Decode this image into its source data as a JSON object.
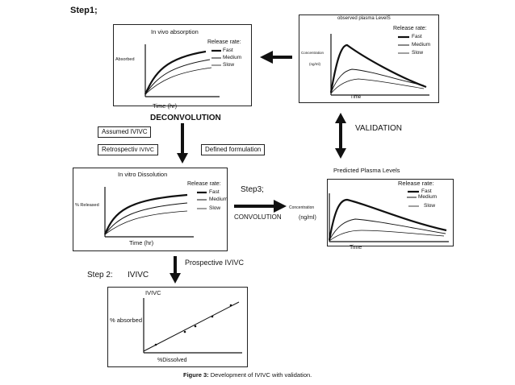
{
  "step1": "Step1;",
  "panel_invivo": {
    "title": "In vivo absorption",
    "ylabel": "Absorbed",
    "xlabel": "Time (hr)",
    "legend_title": "Release rate:",
    "legend": [
      "Fast",
      "Medium",
      "Slow"
    ]
  },
  "panel_observed": {
    "title": "observed plasma LevelS",
    "ylabel_line1": "Concentration",
    "ylabel_line2": "(ng/ml)",
    "xlabel": "Time",
    "legend_title": "Release rate:",
    "legend": [
      "Fast",
      "Medium",
      "Slow"
    ]
  },
  "deconvolution": "DECONVOLUTION",
  "validation": "VALIDATION",
  "assumed_ivivc": "Assumed  IVIVC",
  "retrospective_ivivc_a": "Retrospectiv",
  "retrospective_ivivc_b": "IVIVC",
  "defined_formulation": "Defined formulation",
  "panel_invitro": {
    "title": "In  vitro Dissolution",
    "ylabel": "% Released",
    "xlabel": "Time  (hr)",
    "legend_title": "Release rate:",
    "legend": [
      "Fast",
      "Medium",
      "Slow"
    ]
  },
  "step3": "Step3;",
  "convolution": "CONVOLUTION",
  "predicted": {
    "title": "Predicted Plasma Levels",
    "ylabel_line1": "Concentration",
    "ylabel_line2": "(ng/ml)",
    "xlabel": "Time",
    "legend_title": "Release rate:",
    "legend": [
      "Fast",
      "Medium",
      "Slow"
    ]
  },
  "prospective_ivivc": "Prospective IVIVC",
  "step2_a": "Step 2:",
  "step2_b": "IVIVC",
  "panel_ivivc": {
    "title": "IVIVC",
    "ylabel": "% absorbed",
    "xlabel": "%Dissolved"
  },
  "caption_bold": "Figure 3:",
  "caption_rest": "Development of IVIVC with validation."
}
